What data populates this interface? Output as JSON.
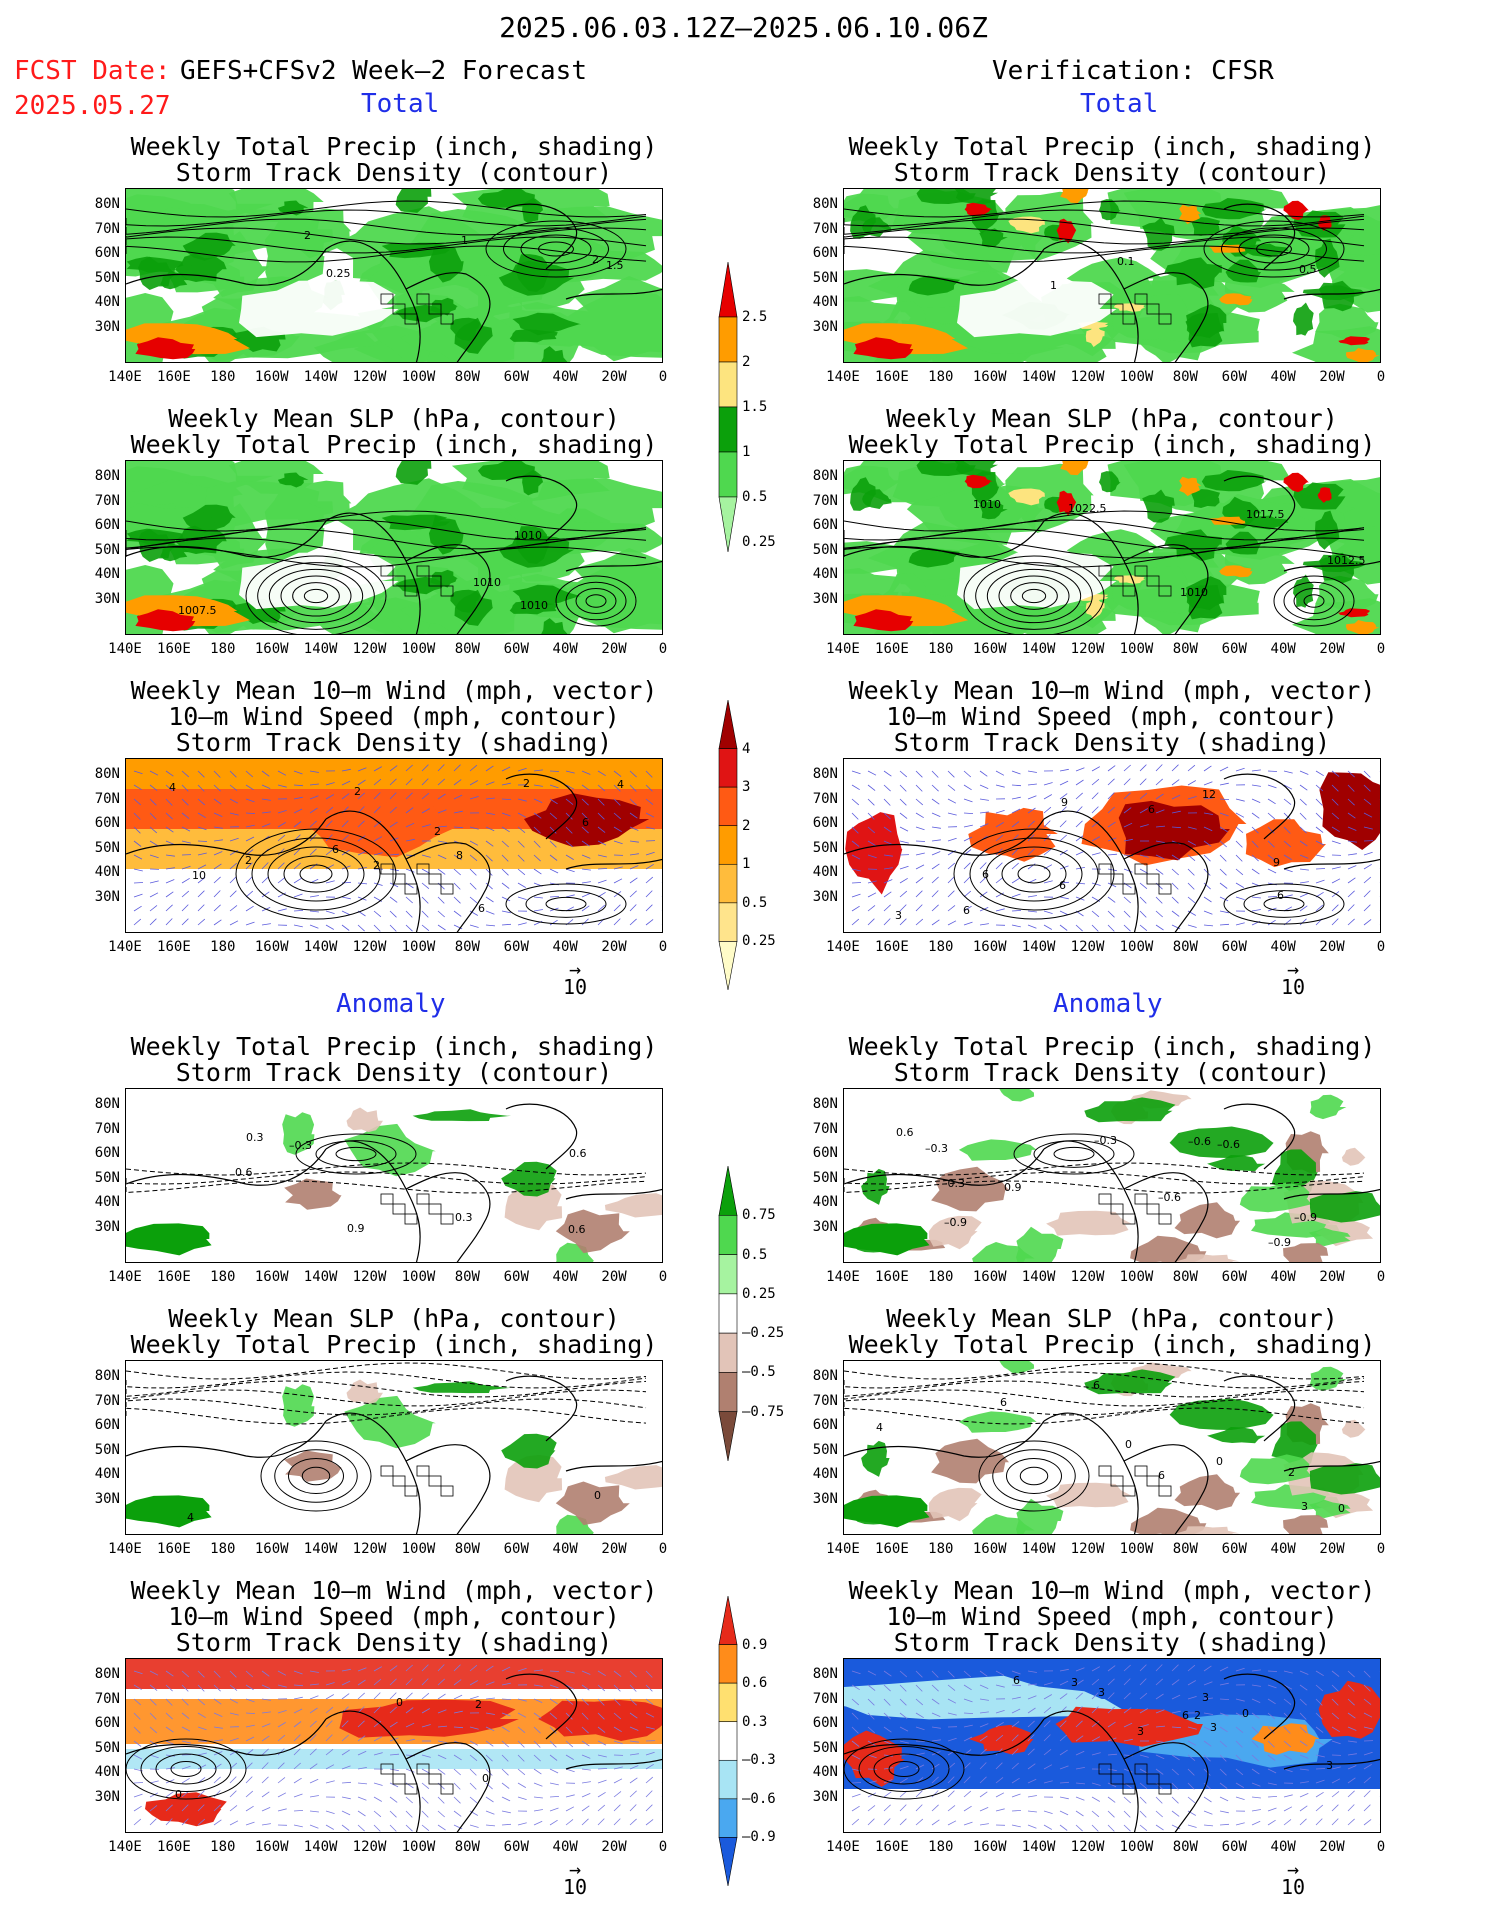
{
  "header": {
    "main_title": "2025.06.03.12Z–2025.06.10.06Z",
    "fcst_label": "FCST Date:",
    "fcst_model": "GEFS+CFSv2 Week–2 Forecast",
    "fcst_date": "2025.05.27",
    "verif_label": "Verification: CFSR"
  },
  "sections": {
    "total": "Total",
    "anomaly": "Anomaly"
  },
  "panel_titles": {
    "precip_storm": [
      "Weekly Total Precip (inch, shading)",
      "Storm Track Density (contour)"
    ],
    "slp_precip": [
      "Weekly Mean SLP (hPa, contour)",
      "Weekly Total Precip (inch, shading)"
    ],
    "wind_storm": [
      "Weekly Mean 10–m Wind (mph, vector)",
      "10–m Wind Speed (mph, contour)",
      "Storm Track Density (shading)"
    ]
  },
  "axes": {
    "lat_ticks": [
      "80N",
      "70N",
      "60N",
      "50N",
      "40N",
      "30N"
    ],
    "lon_ticks": [
      "140E",
      "160E",
      "180",
      "160W",
      "140W",
      "120W",
      "100W",
      "80W",
      "60W",
      "40W",
      "20W",
      "0"
    ]
  },
  "vector_ref": "10",
  "colorbars": {
    "total_precip": {
      "levels": [
        "2.5",
        "2",
        "1.5",
        "1",
        "0.5",
        "0.25"
      ],
      "colors": [
        "#e60000",
        "#ff9c00",
        "#fde47f",
        "#0ba00b",
        "#4fd84f",
        "#a6f3a0"
      ]
    },
    "total_storm": {
      "levels": [
        "4",
        "3",
        "2",
        "1",
        "0.5",
        "0.25"
      ],
      "colors": [
        "#a00000",
        "#e01414",
        "#ff5a14",
        "#ff9c00",
        "#ffbc3c",
        "#ffe48c",
        "#fffcc8"
      ]
    },
    "anom_precip": {
      "levels": [
        "0.75",
        "0.5",
        "0.25",
        "–0.25",
        "–0.5",
        "–0.75"
      ],
      "colors": [
        "#0ba00b",
        "#4fd84f",
        "#a6f3a0",
        "#ffffff",
        "#e2c4b8",
        "#b08070",
        "#7a4a3a"
      ]
    },
    "anom_storm": {
      "levels": [
        "0.9",
        "0.6",
        "0.3",
        "–0.3",
        "–0.6",
        "–0.9"
      ],
      "colors": [
        "#e62a1a",
        "#ff8c1a",
        "#ffe070",
        "#ffffff",
        "#a8e4f4",
        "#4aa8f0",
        "#1a5adc"
      ]
    }
  },
  "map_labels": {
    "fcst_total_precip": [
      "2",
      "2",
      "1",
      "1.5",
      "0.25"
    ],
    "verif_total_precip": [
      "0.1",
      "0.5",
      "1"
    ],
    "fcst_total_slp": [
      "1010",
      "1010",
      "1007.5",
      "1010"
    ],
    "verif_total_slp": [
      "1012.5",
      "1010",
      "1017.5",
      "1022.5",
      "1010"
    ],
    "fcst_total_wind": [
      "2",
      "2",
      "2",
      "2",
      "4",
      "2",
      "4",
      "10",
      "8",
      "6",
      "6",
      "6"
    ],
    "verif_total_wind": [
      "6",
      "9",
      "6",
      "6",
      "3",
      "12",
      "9",
      "6",
      "6"
    ],
    "fcst_anom_precip": [
      "0.3",
      "0.6",
      "0.6",
      "0.9",
      "0.6",
      "0.3",
      "–0.3"
    ],
    "verif_anom_precip": [
      "–0.9",
      "–0.3",
      "–0.6",
      "0.6",
      "–0.9",
      "–0.3",
      "–0.9",
      "0.9",
      "–0.6",
      "–0.3",
      "–0.6"
    ],
    "fcst_anom_slp": [
      "4",
      "0"
    ],
    "verif_anom_slp": [
      "6",
      "3",
      "4",
      "2",
      "0",
      "0",
      "6",
      "0",
      "6"
    ],
    "fcst_anom_wind": [
      "0",
      "2",
      "0",
      "0"
    ],
    "verif_anom_wind": [
      "3",
      "6",
      "3",
      "3",
      "3",
      "3",
      "0",
      "2",
      "3",
      "6"
    ]
  }
}
